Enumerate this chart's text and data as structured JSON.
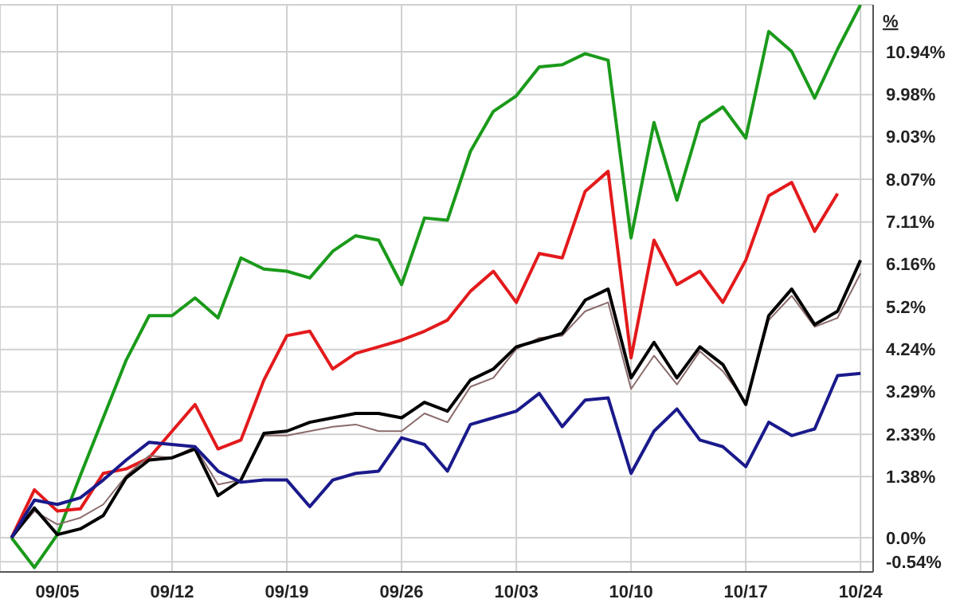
{
  "chart_data": {
    "type": "line",
    "ylabel": "%",
    "categories": [
      null,
      null,
      "09/05",
      null,
      null,
      null,
      null,
      "09/12",
      null,
      null,
      null,
      null,
      "09/19",
      null,
      null,
      null,
      null,
      "09/26",
      null,
      null,
      null,
      null,
      "10/03",
      null,
      null,
      null,
      null,
      "10/10",
      null,
      null,
      null,
      null,
      "10/17",
      null,
      null,
      null,
      null,
      "10/24"
    ],
    "series": [
      {
        "color": "#1a9a1a",
        "values": [
          0,
          -0.67,
          0.07,
          1.4,
          2.7,
          4.0,
          5.0,
          5.0,
          5.4,
          4.95,
          6.3,
          6.05,
          6.0,
          5.85,
          6.45,
          6.8,
          6.7,
          5.7,
          7.2,
          7.15,
          8.7,
          9.6,
          9.95,
          10.6,
          10.65,
          10.9,
          10.75,
          6.75,
          9.35,
          7.6,
          9.35,
          9.7,
          9.0,
          11.4,
          10.95,
          9.9,
          11.0,
          12.0
        ]
      },
      {
        "color": "#e31a1c",
        "values": [
          0,
          1.08,
          0.6,
          0.65,
          1.45,
          1.55,
          1.8,
          2.4,
          3.0,
          2.0,
          2.2,
          3.55,
          4.55,
          4.65,
          3.8,
          4.15,
          4.3,
          4.45,
          4.65,
          4.9,
          5.55,
          6.0,
          5.3,
          6.4,
          6.3,
          7.8,
          8.25,
          4.05,
          6.7,
          5.7,
          6.0,
          5.3,
          6.25,
          7.7,
          8.0,
          6.9,
          7.75,
          null
        ]
      },
      {
        "color": "#8b6b6b",
        "values": [
          0,
          0.6,
          0.3,
          0.45,
          0.75,
          1.4,
          1.85,
          1.8,
          2.05,
          1.2,
          1.3,
          2.3,
          2.3,
          2.4,
          2.5,
          2.55,
          2.4,
          2.4,
          2.8,
          2.6,
          3.4,
          3.6,
          4.25,
          4.5,
          4.55,
          5.1,
          5.3,
          3.35,
          4.1,
          3.45,
          4.2,
          3.75,
          3.05,
          4.9,
          5.45,
          4.75,
          4.95,
          5.95
        ]
      },
      {
        "color": "#000000",
        "values": [
          0,
          0.67,
          0.07,
          0.2,
          0.5,
          1.35,
          1.75,
          1.8,
          2.0,
          0.95,
          1.3,
          2.35,
          2.4,
          2.6,
          2.7,
          2.8,
          2.8,
          2.7,
          3.05,
          2.85,
          3.55,
          3.8,
          4.3,
          4.45,
          4.6,
          5.35,
          5.6,
          3.6,
          4.4,
          3.6,
          4.3,
          3.9,
          3.0,
          5.0,
          5.6,
          4.8,
          5.1,
          6.25
        ]
      },
      {
        "color": "#1a1a8c",
        "values": [
          0,
          0.85,
          0.75,
          0.9,
          1.3,
          1.75,
          2.15,
          2.1,
          2.05,
          1.5,
          1.25,
          1.3,
          1.3,
          0.7,
          1.3,
          1.45,
          1.5,
          2.25,
          2.1,
          1.5,
          2.55,
          2.7,
          2.85,
          3.25,
          2.5,
          3.1,
          3.15,
          1.45,
          2.4,
          2.9,
          2.2,
          2.05,
          1.6,
          2.6,
          2.3,
          2.45,
          3.65,
          3.7
        ]
      }
    ],
    "ylim": [
      -0.77,
      12.0
    ],
    "yticks": [
      {
        "value": -0.54,
        "label": "-0.54%"
      },
      {
        "value": 0,
        "label": "0.0%"
      },
      {
        "value": 1.38,
        "label": "1.38%"
      },
      {
        "value": 2.33,
        "label": "2.33%"
      },
      {
        "value": 3.29,
        "label": "3.29%"
      },
      {
        "value": 4.24,
        "label": "4.24%"
      },
      {
        "value": 5.2,
        "label": "5.2%"
      },
      {
        "value": 6.16,
        "label": "6.16%"
      },
      {
        "value": 7.11,
        "label": "7.11%"
      },
      {
        "value": 8.07,
        "label": "8.07%"
      },
      {
        "value": 9.03,
        "label": "9.03%"
      },
      {
        "value": 9.98,
        "label": "9.98%"
      },
      {
        "value": 10.94,
        "label": "10.94%"
      }
    ],
    "grid": true,
    "marker": "none",
    "line_style": "solid"
  }
}
